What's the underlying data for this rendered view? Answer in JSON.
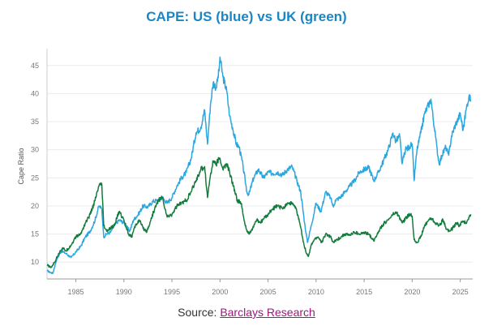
{
  "colors": {
    "title": "#1a86c4",
    "us": "#2aa7df",
    "uk": "#137c3c",
    "grid": "#ececec",
    "link": "#a0157e"
  },
  "source": {
    "prefix": "Source: ",
    "link_text": "Barclays Research"
  },
  "chart_data": {
    "type": "line",
    "title": "CAPE: US (blue) vs UK (green)",
    "xlabel": "",
    "ylabel": "Cape Ratio",
    "xlim": [
      1982.0,
      2026.3
    ],
    "ylim": [
      7,
      48
    ],
    "xticks": [
      1985,
      1990,
      1995,
      2000,
      2005,
      2010,
      2015,
      2020,
      2025
    ],
    "yticks": [
      10,
      15,
      20,
      25,
      30,
      35,
      40,
      45
    ],
    "grid": true,
    "series": [
      {
        "name": "US",
        "color": "#2aa7df",
        "points": [
          [
            1982.0,
            8.5
          ],
          [
            1982.3,
            8.2
          ],
          [
            1982.6,
            8.0
          ],
          [
            1983.0,
            10.5
          ],
          [
            1983.5,
            12.0
          ],
          [
            1984.0,
            11.5
          ],
          [
            1984.5,
            10.8
          ],
          [
            1985.0,
            11.8
          ],
          [
            1985.5,
            12.8
          ],
          [
            1986.0,
            14.5
          ],
          [
            1986.5,
            15.5
          ],
          [
            1987.0,
            17.5
          ],
          [
            1987.4,
            20.0
          ],
          [
            1987.7,
            19.5
          ],
          [
            1987.9,
            14.5
          ],
          [
            1988.2,
            15.0
          ],
          [
            1988.6,
            15.3
          ],
          [
            1989.0,
            16.5
          ],
          [
            1989.5,
            17.5
          ],
          [
            1990.0,
            17.0
          ],
          [
            1990.6,
            15.5
          ],
          [
            1991.0,
            17.5
          ],
          [
            1991.5,
            18.5
          ],
          [
            1992.0,
            20.0
          ],
          [
            1992.5,
            19.8
          ],
          [
            1993.0,
            20.8
          ],
          [
            1993.5,
            21.0
          ],
          [
            1994.0,
            21.5
          ],
          [
            1994.5,
            20.5
          ],
          [
            1995.0,
            21.5
          ],
          [
            1995.5,
            23.5
          ],
          [
            1996.0,
            25.0
          ],
          [
            1996.5,
            26.0
          ],
          [
            1997.0,
            28.5
          ],
          [
            1997.5,
            33.0
          ],
          [
            1998.0,
            34.0
          ],
          [
            1998.4,
            37.0
          ],
          [
            1998.7,
            31.0
          ],
          [
            1999.0,
            38.0
          ],
          [
            1999.3,
            42.0
          ],
          [
            1999.6,
            41.0
          ],
          [
            1999.9,
            44.0
          ],
          [
            2000.0,
            46.5
          ],
          [
            2000.3,
            43.0
          ],
          [
            2000.7,
            40.5
          ],
          [
            2001.0,
            36.0
          ],
          [
            2001.3,
            34.0
          ],
          [
            2001.7,
            31.0
          ],
          [
            2002.0,
            30.5
          ],
          [
            2002.4,
            27.0
          ],
          [
            2002.8,
            22.5
          ],
          [
            2003.0,
            22.0
          ],
          [
            2003.5,
            25.0
          ],
          [
            2004.0,
            26.5
          ],
          [
            2004.5,
            25.0
          ],
          [
            2005.0,
            26.0
          ],
          [
            2005.5,
            25.8
          ],
          [
            2006.0,
            26.0
          ],
          [
            2006.5,
            25.5
          ],
          [
            2007.0,
            26.5
          ],
          [
            2007.5,
            27.0
          ],
          [
            2008.0,
            24.5
          ],
          [
            2008.4,
            22.5
          ],
          [
            2008.8,
            17.0
          ],
          [
            2009.1,
            13.5
          ],
          [
            2009.5,
            16.5
          ],
          [
            2010.0,
            20.5
          ],
          [
            2010.5,
            19.0
          ],
          [
            2011.0,
            22.5
          ],
          [
            2011.5,
            21.5
          ],
          [
            2011.8,
            19.8
          ],
          [
            2012.0,
            21.0
          ],
          [
            2012.5,
            21.5
          ],
          [
            2013.0,
            22.5
          ],
          [
            2013.5,
            23.5
          ],
          [
            2014.0,
            24.5
          ],
          [
            2014.5,
            26.0
          ],
          [
            2015.0,
            26.5
          ],
          [
            2015.5,
            26.8
          ],
          [
            2016.0,
            24.5
          ],
          [
            2016.5,
            26.0
          ],
          [
            2017.0,
            28.0
          ],
          [
            2017.5,
            30.0
          ],
          [
            2018.0,
            33.0
          ],
          [
            2018.3,
            31.5
          ],
          [
            2018.7,
            32.5
          ],
          [
            2018.95,
            27.5
          ],
          [
            2019.3,
            30.0
          ],
          [
            2019.7,
            30.5
          ],
          [
            2020.0,
            31.0
          ],
          [
            2020.2,
            24.5
          ],
          [
            2020.5,
            30.0
          ],
          [
            2020.9,
            33.0
          ],
          [
            2021.3,
            36.5
          ],
          [
            2021.7,
            38.0
          ],
          [
            2021.95,
            39.0
          ],
          [
            2022.3,
            34.0
          ],
          [
            2022.6,
            30.0
          ],
          [
            2022.8,
            27.5
          ],
          [
            2023.1,
            29.0
          ],
          [
            2023.5,
            30.5
          ],
          [
            2023.8,
            29.0
          ],
          [
            2024.1,
            32.5
          ],
          [
            2024.5,
            34.5
          ],
          [
            2024.8,
            35.5
          ],
          [
            2025.0,
            36.5
          ],
          [
            2025.3,
            33.5
          ],
          [
            2025.6,
            37.0
          ],
          [
            2025.9,
            39.5
          ],
          [
            2026.1,
            38.8
          ]
        ]
      },
      {
        "name": "UK",
        "color": "#137c3c",
        "points": [
          [
            1982.0,
            9.5
          ],
          [
            1982.4,
            9.0
          ],
          [
            1982.8,
            10.0
          ],
          [
            1983.2,
            11.5
          ],
          [
            1983.6,
            12.5
          ],
          [
            1984.0,
            12.0
          ],
          [
            1984.5,
            13.0
          ],
          [
            1985.0,
            14.5
          ],
          [
            1985.5,
            15.0
          ],
          [
            1986.0,
            17.0
          ],
          [
            1986.5,
            18.5
          ],
          [
            1987.0,
            21.0
          ],
          [
            1987.4,
            23.5
          ],
          [
            1987.7,
            23.8
          ],
          [
            1987.9,
            16.5
          ],
          [
            1988.2,
            15.5
          ],
          [
            1988.6,
            16.0
          ],
          [
            1989.0,
            16.5
          ],
          [
            1989.5,
            19.0
          ],
          [
            1990.0,
            17.5
          ],
          [
            1990.5,
            15.0
          ],
          [
            1990.8,
            14.5
          ],
          [
            1991.2,
            16.5
          ],
          [
            1991.6,
            17.5
          ],
          [
            1992.0,
            16.0
          ],
          [
            1992.4,
            15.5
          ],
          [
            1992.8,
            17.5
          ],
          [
            1993.2,
            19.5
          ],
          [
            1993.6,
            21.0
          ],
          [
            1994.0,
            21.5
          ],
          [
            1994.5,
            18.0
          ],
          [
            1995.0,
            18.5
          ],
          [
            1995.5,
            20.0
          ],
          [
            1996.0,
            20.5
          ],
          [
            1996.5,
            21.0
          ],
          [
            1997.0,
            22.5
          ],
          [
            1997.5,
            24.5
          ],
          [
            1998.0,
            26.5
          ],
          [
            1998.4,
            27.0
          ],
          [
            1998.7,
            21.5
          ],
          [
            1999.0,
            25.5
          ],
          [
            1999.3,
            28.0
          ],
          [
            1999.6,
            27.5
          ],
          [
            2000.0,
            28.5
          ],
          [
            2000.3,
            26.5
          ],
          [
            2000.7,
            27.5
          ],
          [
            2001.0,
            26.0
          ],
          [
            2001.4,
            23.5
          ],
          [
            2001.8,
            21.0
          ],
          [
            2002.2,
            20.5
          ],
          [
            2002.5,
            17.5
          ],
          [
            2002.8,
            15.5
          ],
          [
            2003.0,
            15.0
          ],
          [
            2003.4,
            16.0
          ],
          [
            2003.8,
            17.5
          ],
          [
            2004.2,
            17.0
          ],
          [
            2004.6,
            17.8
          ],
          [
            2005.0,
            18.5
          ],
          [
            2005.5,
            19.5
          ],
          [
            2006.0,
            20.0
          ],
          [
            2006.5,
            19.5
          ],
          [
            2007.0,
            20.5
          ],
          [
            2007.5,
            20.5
          ],
          [
            2007.9,
            19.5
          ],
          [
            2008.3,
            17.0
          ],
          [
            2008.7,
            13.5
          ],
          [
            2009.0,
            11.5
          ],
          [
            2009.2,
            11.0
          ],
          [
            2009.5,
            13.0
          ],
          [
            2009.8,
            14.0
          ],
          [
            2010.2,
            14.5
          ],
          [
            2010.6,
            13.5
          ],
          [
            2011.0,
            15.0
          ],
          [
            2011.5,
            14.5
          ],
          [
            2011.8,
            13.5
          ],
          [
            2012.2,
            14.0
          ],
          [
            2012.6,
            14.5
          ],
          [
            2013.0,
            15.0
          ],
          [
            2013.5,
            14.8
          ],
          [
            2014.0,
            15.3
          ],
          [
            2014.5,
            15.0
          ],
          [
            2015.0,
            15.2
          ],
          [
            2015.5,
            15.0
          ],
          [
            2016.0,
            13.8
          ],
          [
            2016.5,
            15.5
          ],
          [
            2017.0,
            16.8
          ],
          [
            2017.5,
            17.5
          ],
          [
            2018.0,
            18.5
          ],
          [
            2018.4,
            18.8
          ],
          [
            2018.8,
            17.5
          ],
          [
            2019.0,
            17.0
          ],
          [
            2019.4,
            18.0
          ],
          [
            2019.8,
            18.5
          ],
          [
            2020.0,
            18.2
          ],
          [
            2020.2,
            14.0
          ],
          [
            2020.5,
            13.5
          ],
          [
            2020.9,
            14.5
          ],
          [
            2021.3,
            16.5
          ],
          [
            2021.7,
            17.5
          ],
          [
            2022.0,
            17.8
          ],
          [
            2022.4,
            17.0
          ],
          [
            2022.8,
            16.5
          ],
          [
            2023.2,
            17.5
          ],
          [
            2023.6,
            15.8
          ],
          [
            2023.9,
            15.5
          ],
          [
            2024.2,
            16.0
          ],
          [
            2024.6,
            17.0
          ],
          [
            2024.9,
            16.5
          ],
          [
            2025.2,
            17.2
          ],
          [
            2025.6,
            17.0
          ],
          [
            2025.9,
            18.0
          ],
          [
            2026.1,
            18.5
          ]
        ]
      }
    ]
  }
}
